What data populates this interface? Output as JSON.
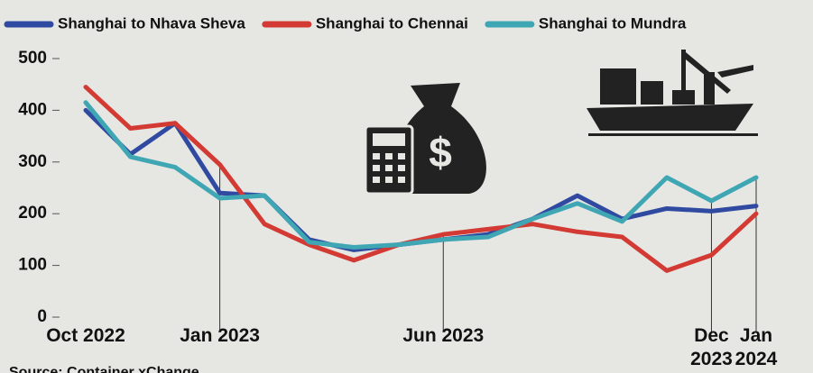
{
  "chart_data": {
    "type": "line",
    "categories": [
      "Oct 2022",
      null,
      null,
      "Jan 2023",
      null,
      null,
      null,
      null,
      "Jun 2023",
      null,
      null,
      null,
      null,
      null,
      "Dec 2023",
      "Jan 2024"
    ],
    "series": [
      {
        "name": "Shanghai to Nhava Sheva",
        "color": "#2f4aa0",
        "values": [
          400,
          315,
          375,
          240,
          235,
          150,
          130,
          140,
          150,
          160,
          190,
          235,
          190,
          210,
          205,
          215
        ]
      },
      {
        "name": "Shanghai to Chennai",
        "color": "#d23a33",
        "values": [
          445,
          365,
          375,
          295,
          180,
          140,
          110,
          140,
          160,
          170,
          180,
          165,
          155,
          90,
          120,
          200
        ]
      },
      {
        "name": "Shanghai to Mundra",
        "color": "#3fa6b3",
        "values": [
          415,
          310,
          290,
          230,
          235,
          145,
          135,
          140,
          150,
          155,
          190,
          220,
          185,
          270,
          225,
          270
        ]
      }
    ],
    "ylim": [
      0,
      500
    ],
    "yticks": [
      0,
      100,
      200,
      300,
      400,
      500
    ],
    "grid": false,
    "source": "Source: Container xChange"
  }
}
